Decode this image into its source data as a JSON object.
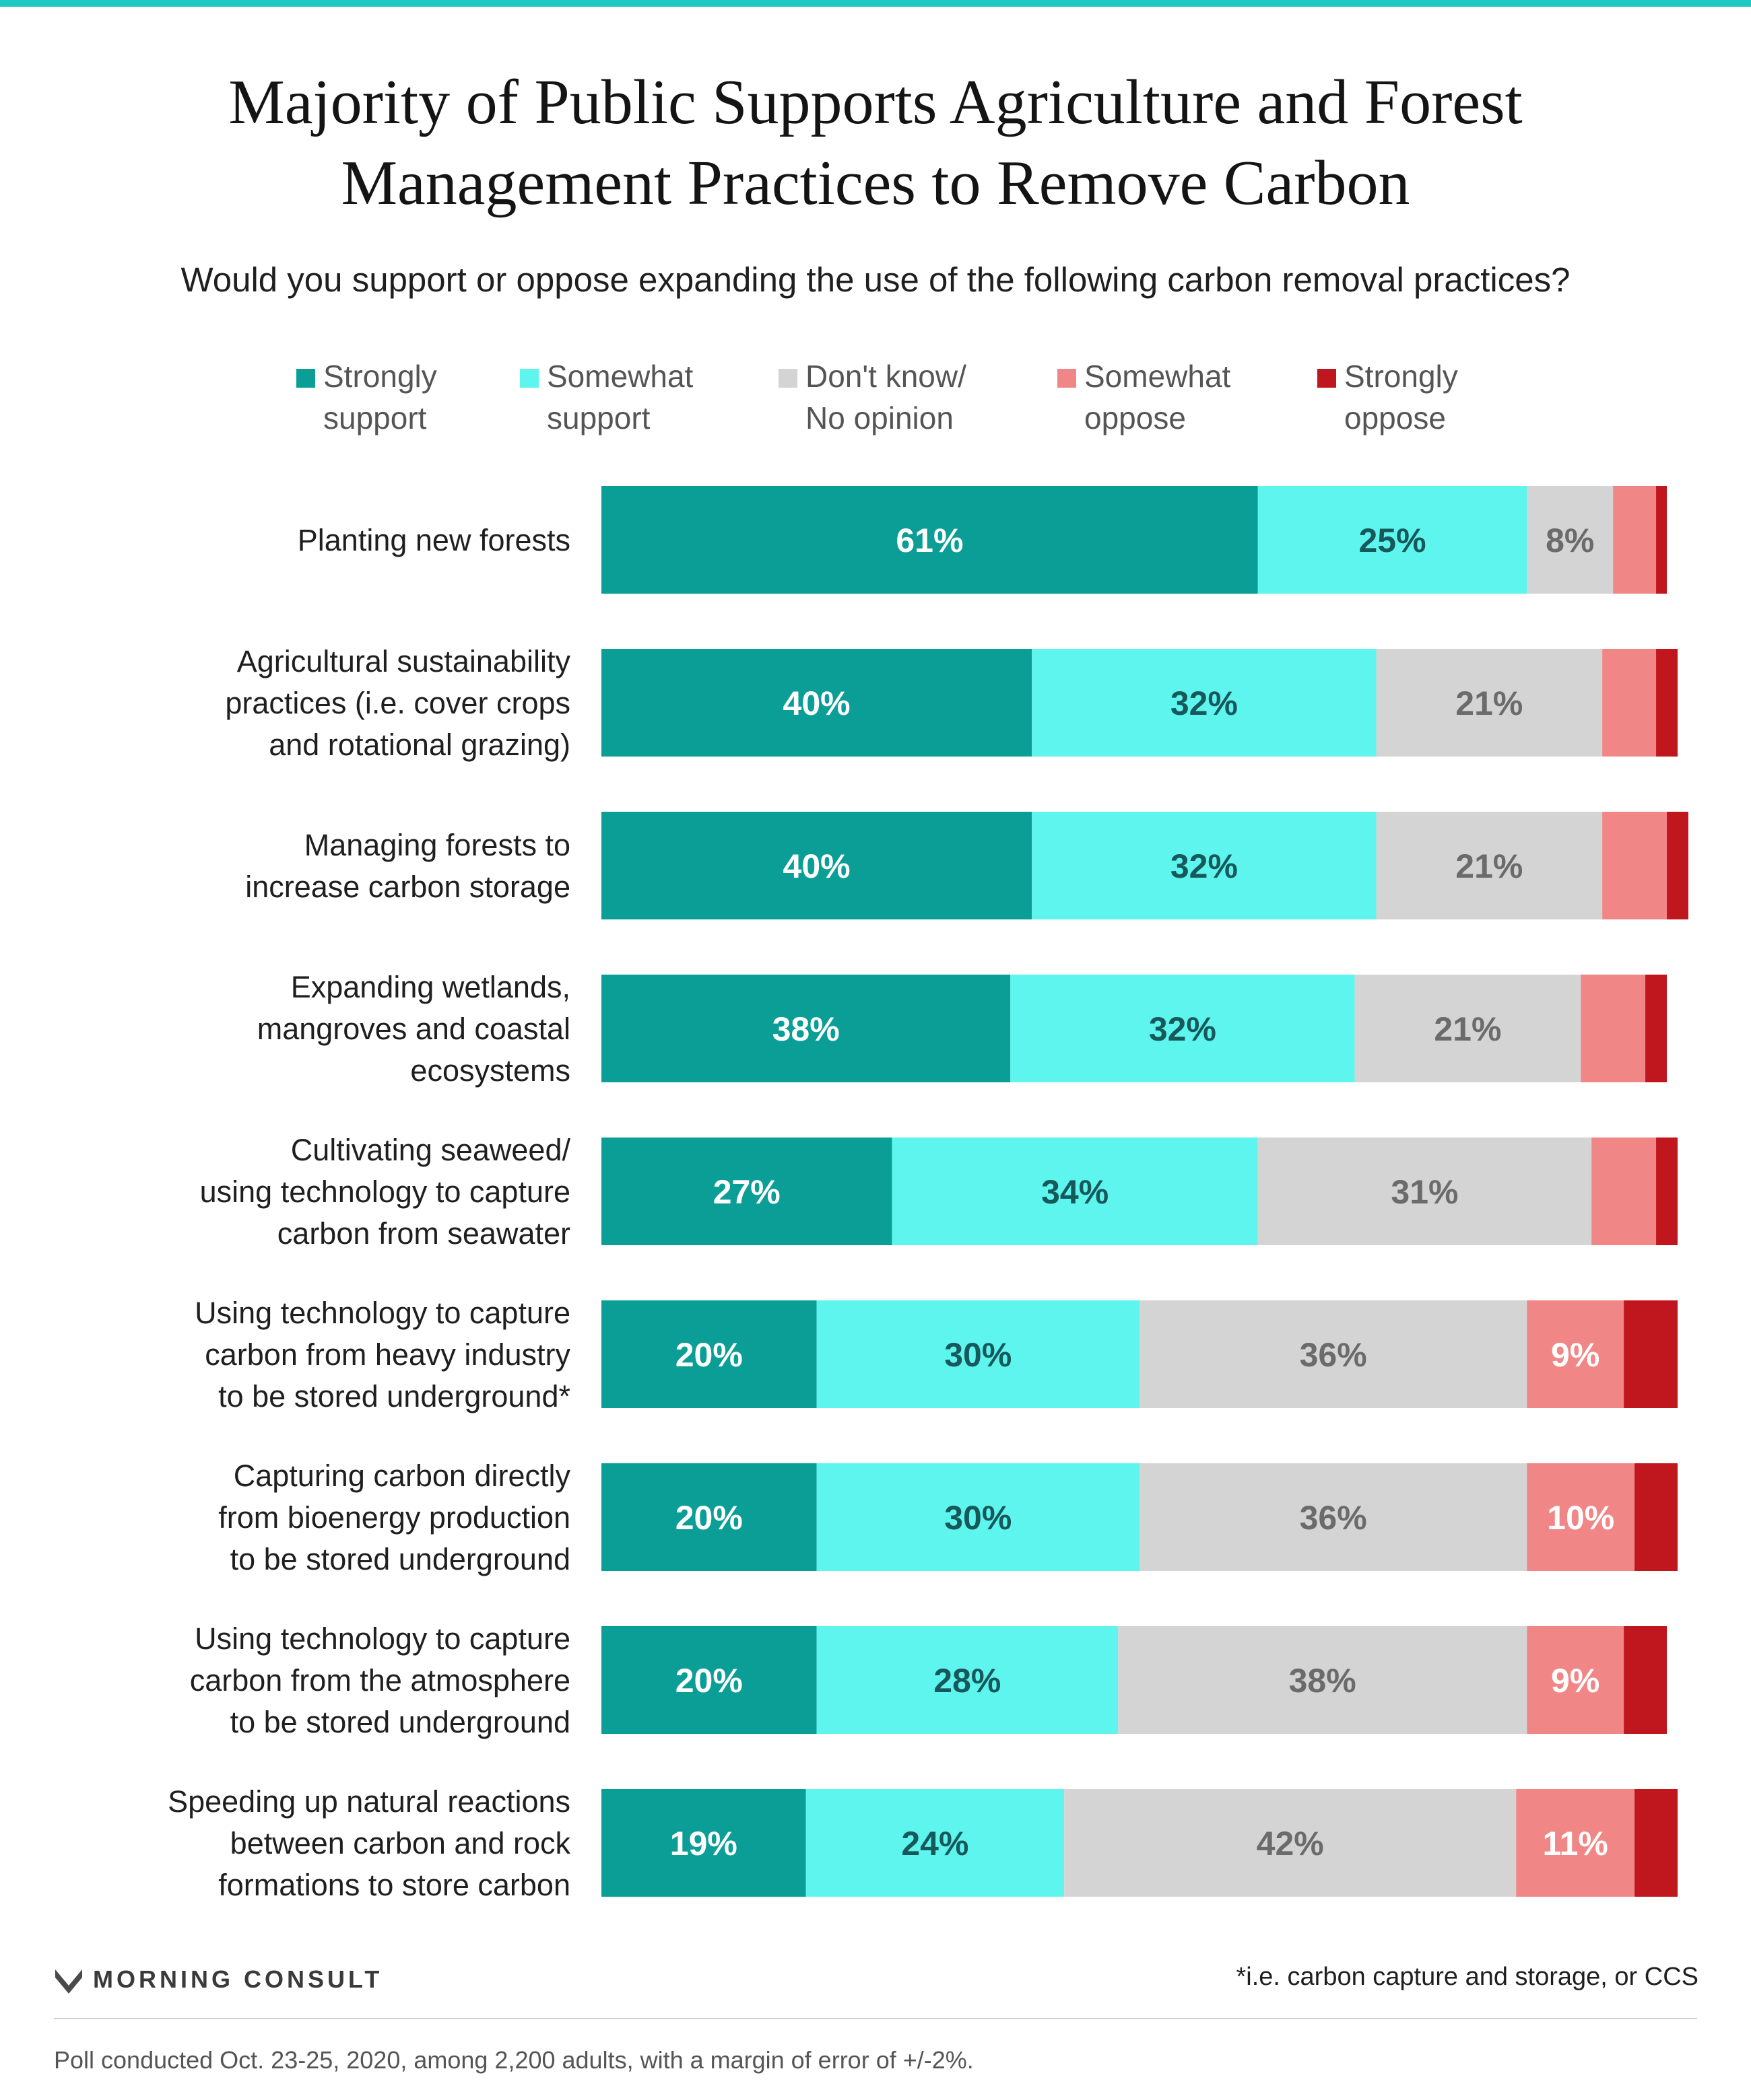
{
  "chart_data": {
    "type": "bar",
    "orientation": "horizontal",
    "stacked": true,
    "title_lines": [
      "Majority of Public Supports Agriculture and Forest",
      "Management Practices to Remove Carbon"
    ],
    "subtitle": "Would you support or oppose expanding the use of the following carbon removal practices?",
    "xlim": [
      0,
      100
    ],
    "grid": false,
    "legend_position": "top",
    "series": [
      {
        "name_lines": [
          "Strongly",
          "support"
        ],
        "color": "#0b9e96",
        "label_color": "#ffffff"
      },
      {
        "name_lines": [
          "Somewhat",
          "support"
        ],
        "color": "#5ef5ee",
        "label_color": "#17585b"
      },
      {
        "name_lines": [
          "Don't know/",
          "No opinion"
        ],
        "color": "#d4d4d4",
        "label_color": "#6b6b6b"
      },
      {
        "name_lines": [
          "Somewhat",
          "oppose"
        ],
        "color": "#f08686",
        "label_color": "#ffffff"
      },
      {
        "name_lines": [
          "Strongly",
          "oppose"
        ],
        "color": "#c0161d",
        "label_color": "#ffffff"
      }
    ],
    "rows": [
      {
        "label_lines": [
          "Planting new forests"
        ],
        "values": [
          61,
          25,
          8,
          4,
          1
        ],
        "value_labels": [
          "61%",
          "25%",
          "8%",
          "",
          ""
        ]
      },
      {
        "label_lines": [
          "Agricultural sustainability",
          "practices (i.e. cover crops",
          "and rotational grazing)"
        ],
        "values": [
          40,
          32,
          21,
          5,
          2
        ],
        "value_labels": [
          "40%",
          "32%",
          "21%",
          "",
          ""
        ]
      },
      {
        "label_lines": [
          "Managing forests to",
          "increase carbon storage"
        ],
        "values": [
          40,
          32,
          21,
          6,
          2
        ],
        "value_labels": [
          "40%",
          "32%",
          "21%",
          "",
          ""
        ]
      },
      {
        "label_lines": [
          "Expanding wetlands,",
          "mangroves and coastal",
          "ecosystems"
        ],
        "values": [
          38,
          32,
          21,
          6,
          2
        ],
        "value_labels": [
          "38%",
          "32%",
          "21%",
          "",
          ""
        ]
      },
      {
        "label_lines": [
          "Cultivating seaweed/",
          "using technology to capture",
          "carbon from seawater"
        ],
        "values": [
          27,
          34,
          31,
          6,
          2
        ],
        "value_labels": [
          "27%",
          "34%",
          "31%",
          "",
          ""
        ]
      },
      {
        "label_lines": [
          "Using technology to capture",
          "carbon from heavy industry",
          "to be stored underground*"
        ],
        "values": [
          20,
          30,
          36,
          9,
          5
        ],
        "value_labels": [
          "20%",
          "30%",
          "36%",
          "9%",
          ""
        ]
      },
      {
        "label_lines": [
          "Capturing carbon directly",
          "from bioenergy production",
          "to be stored underground"
        ],
        "values": [
          20,
          30,
          36,
          10,
          4
        ],
        "value_labels": [
          "20%",
          "30%",
          "36%",
          "10%",
          ""
        ]
      },
      {
        "label_lines": [
          "Using technology to capture",
          "carbon from the atmosphere",
          "to be stored underground"
        ],
        "values": [
          20,
          28,
          38,
          9,
          4
        ],
        "value_labels": [
          "20%",
          "28%",
          "38%",
          "9%",
          ""
        ]
      },
      {
        "label_lines": [
          "Speeding up natural reactions",
          "between carbon and rock",
          "formations to store carbon"
        ],
        "values": [
          19,
          24,
          42,
          11,
          4
        ],
        "value_labels": [
          "19%",
          "24%",
          "42%",
          "11%",
          ""
        ]
      }
    ]
  },
  "footer": {
    "brand": "MORNING CONSULT",
    "footnote": "*i.e. carbon capture and storage, or CCS",
    "source": "Poll conducted Oct. 23-25, 2020, among 2,200 adults, with a margin of error of +/-2%."
  },
  "colors": {
    "top_rule": "#1fc9c2",
    "brand_mark": "#4a4a4a"
  }
}
